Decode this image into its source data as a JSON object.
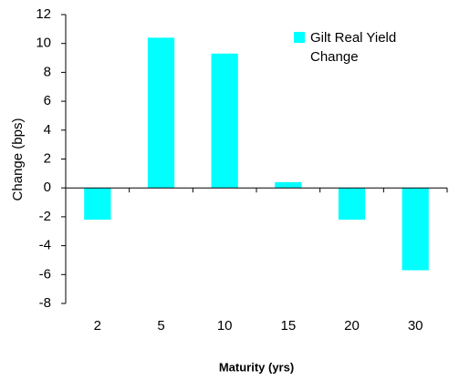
{
  "chart_data": {
    "type": "bar",
    "categories": [
      "2",
      "5",
      "10",
      "15",
      "20",
      "30"
    ],
    "series": [
      {
        "name": "Gilt Real Yield Change",
        "color": "#00ffff",
        "values": [
          -2.2,
          10.4,
          9.3,
          0.4,
          -2.2,
          -5.7
        ]
      }
    ],
    "ylim": [
      -8,
      12
    ],
    "yticks": [
      -8,
      -6,
      -4,
      -2,
      0,
      2,
      4,
      6,
      8,
      10,
      12
    ],
    "y_label": "Change (bps)",
    "x_label": "Maturity (yrs)",
    "legend": "top-right",
    "grid": false
  }
}
